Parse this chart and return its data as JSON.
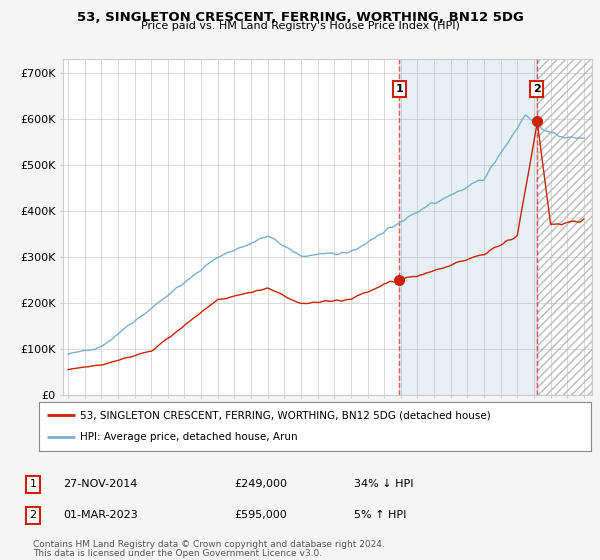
{
  "title": "53, SINGLETON CRESCENT, FERRING, WORTHING, BN12 5DG",
  "subtitle": "Price paid vs. HM Land Registry's House Price Index (HPI)",
  "ylabel_ticks": [
    "£0",
    "£100K",
    "£200K",
    "£300K",
    "£400K",
    "£500K",
    "£600K",
    "£700K"
  ],
  "ytick_values": [
    0,
    100000,
    200000,
    300000,
    400000,
    500000,
    600000,
    700000
  ],
  "ylim": [
    0,
    730000
  ],
  "xlim_start": 1994.7,
  "xlim_end": 2026.5,
  "hpi_color": "#7aafd4",
  "price_color": "#cc2200",
  "vline_color": "#ee4444",
  "marker1_x": 2014.92,
  "marker1_y": 249000,
  "marker2_x": 2023.17,
  "marker2_y": 595000,
  "legend_label1": "53, SINGLETON CRESCENT, FERRING, WORTHING, BN12 5DG (detached house)",
  "legend_label2": "HPI: Average price, detached house, Arun",
  "table_row1": [
    "1",
    "27-NOV-2014",
    "£249,000",
    "34% ↓ HPI"
  ],
  "table_row2": [
    "2",
    "01-MAR-2023",
    "£595,000",
    "5% ↑ HPI"
  ],
  "footnote1": "Contains HM Land Registry data © Crown copyright and database right 2024.",
  "footnote2": "This data is licensed under the Open Government Licence v3.0.",
  "bg_color": "#f5f5f5",
  "plot_bg_color": "#ffffff",
  "grid_color": "#cccccc",
  "hatch_color": "#bbbbbb",
  "span_color": "#ddeeff"
}
